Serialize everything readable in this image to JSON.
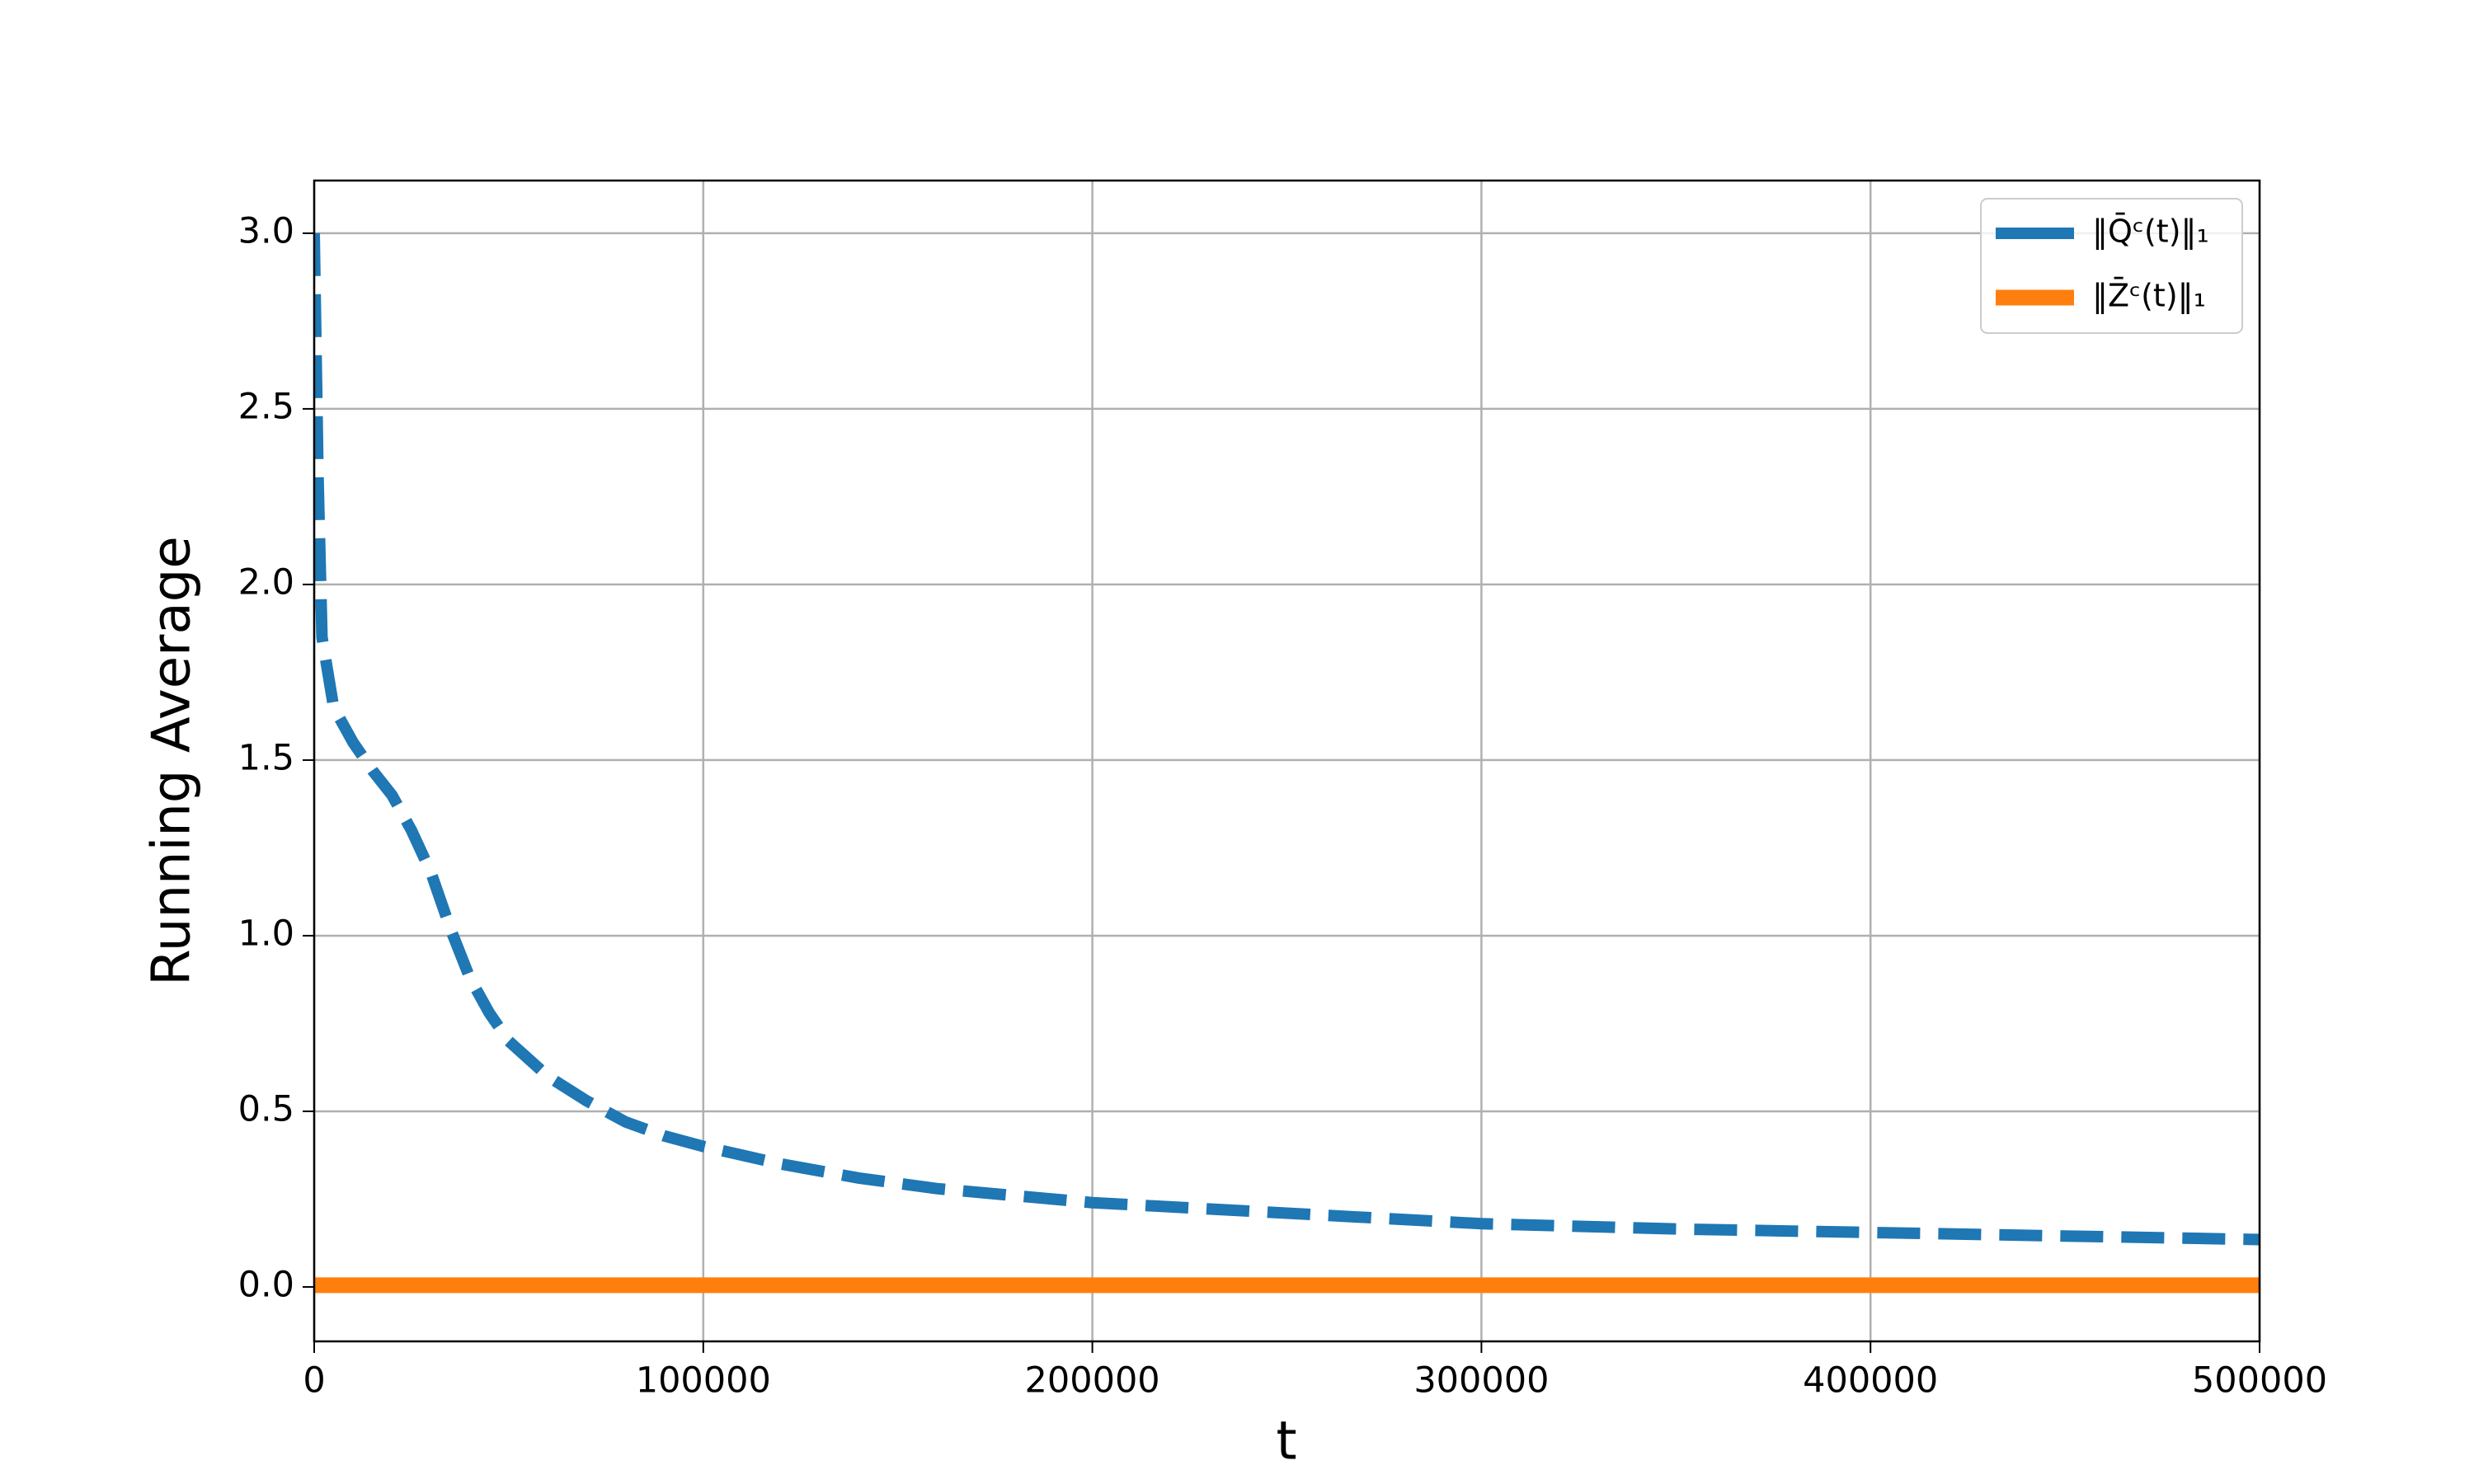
{
  "chart_data": {
    "type": "line",
    "xlabel": "t",
    "ylabel": "Running Average",
    "xlim": [
      0,
      500000
    ],
    "ylim": [
      -0.155,
      3.15
    ],
    "xticks": [
      0,
      100000,
      200000,
      300000,
      400000,
      500000
    ],
    "yticks": [
      {
        "value": 0,
        "label": "0.0"
      },
      0.5,
      {
        "value": 1,
        "label": "1.0"
      },
      1.5,
      {
        "value": 2,
        "label": "2.0"
      },
      2.5,
      {
        "value": 3,
        "label": "3.0"
      }
    ],
    "grid": true,
    "legend": "upper right",
    "series": [
      {
        "name": "‖Q̄ᶜ(t)‖₁",
        "color": "#1f77b4",
        "dashed": true,
        "x": [
          0,
          1000,
          2000,
          5000,
          10000,
          15000,
          20000,
          25000,
          30000,
          35000,
          40000,
          45000,
          50000,
          60000,
          70000,
          80000,
          90000,
          100000,
          120000,
          140000,
          160000,
          180000,
          200000,
          250000,
          300000,
          350000,
          400000,
          450000,
          500000
        ],
        "values": [
          3.0,
          2.3,
          1.85,
          1.65,
          1.55,
          1.47,
          1.4,
          1.3,
          1.18,
          1.02,
          0.88,
          0.78,
          0.7,
          0.6,
          0.53,
          0.47,
          0.43,
          0.4,
          0.35,
          0.31,
          0.28,
          0.26,
          0.24,
          0.21,
          0.18,
          0.165,
          0.155,
          0.145,
          0.135
        ]
      },
      {
        "name": "‖Z̄ᶜ(t)‖₁",
        "color": "#ff7f0e",
        "dashed": false,
        "x": [
          0,
          500000
        ],
        "values": [
          0.005,
          0.005
        ]
      }
    ]
  }
}
